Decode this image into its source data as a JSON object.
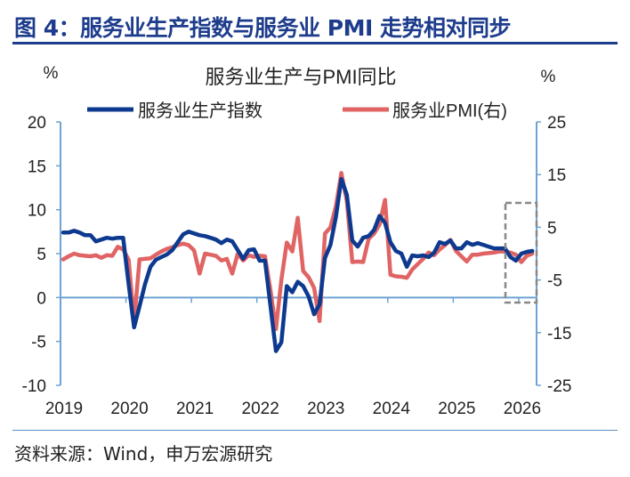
{
  "figure_title": "图 4：服务业生产指数与服务业 PMI 走势相对同步",
  "source": "资料来源：Wind，申万宏源研究",
  "colors": {
    "title": "#1d3c8c",
    "series_production": "#0d3a8f",
    "series_pmi": "#e06464",
    "axis": "#6fa3d3",
    "highlight_box": "#888888"
  },
  "chart_data": {
    "type": "line",
    "title": "服务业生产与PMI同比",
    "left_unit": "%",
    "right_unit": "%",
    "x_tick_labels": [
      "2019",
      "2020",
      "2021",
      "2022",
      "2023",
      "2024",
      "2025",
      "2026"
    ],
    "x_start": "2019-01",
    "frequency": "monthly",
    "left_axis": {
      "ylim": [
        -10,
        20
      ],
      "ticks": [
        "20",
        "15",
        "10",
        "5",
        "0",
        "-5",
        "-10"
      ]
    },
    "right_axis": {
      "ylim": [
        -25,
        25
      ],
      "ticks": [
        "25",
        "15",
        "5",
        "-5",
        "-15",
        "-25"
      ]
    },
    "grid": false,
    "legend_placement": "top",
    "highlight": "dashed box around latest months (late 2025 – 2026)",
    "series": [
      {
        "name": "服务业生产指数",
        "axis": "left",
        "color": "#0d3a8f",
        "values": [
          7.4,
          7.4,
          7.6,
          7.4,
          7.1,
          7.1,
          6.4,
          6.6,
          6.8,
          6.7,
          6.8,
          6.8,
          1.5,
          -3.4,
          -1.0,
          1.5,
          3.5,
          4.3,
          4.6,
          4.9,
          5.4,
          6.3,
          7.2,
          7.5,
          7.3,
          7.1,
          7.0,
          6.8,
          6.6,
          6.2,
          6.6,
          6.4,
          5.4,
          4.4,
          5.4,
          5.5,
          4.2,
          4.2,
          -0.9,
          -6.1,
          -5.1,
          1.3,
          0.6,
          1.8,
          1.3,
          0.1,
          -1.9,
          -0.8,
          4.5,
          6.0,
          9.2,
          13.5,
          11.7,
          6.5,
          5.8,
          6.8,
          7.0,
          7.7,
          9.3,
          8.5,
          6.3,
          5.3,
          5.0,
          3.5,
          4.8,
          4.7,
          4.8,
          4.6,
          5.1,
          6.3,
          6.1,
          6.5,
          5.6,
          5.6,
          6.3,
          6.0,
          6.2,
          6.0,
          5.8,
          5.6,
          5.6,
          5.6,
          4.6,
          4.2,
          5.0,
          5.2,
          5.3
        ]
      },
      {
        "name": "服务业PMI(右)",
        "axis": "right",
        "color": "#e06464",
        "values": [
          -1.1,
          -0.5,
          0.0,
          -0.3,
          -0.4,
          -0.5,
          -0.3,
          -0.8,
          -0.3,
          -0.4,
          1.3,
          0.8,
          -1.2,
          -13.0,
          -1.1,
          -1.0,
          -0.9,
          -0.2,
          0.4,
          0.9,
          1.2,
          1.6,
          1.9,
          1.6,
          0.6,
          -3.8,
          0.0,
          -0.2,
          -0.4,
          -1.3,
          -1.0,
          -3.8,
          0.0,
          -1.3,
          -0.3,
          -0.6,
          -0.4,
          -0.5,
          -6.9,
          -14.3,
          -5.0,
          2.1,
          0.4,
          6.8,
          -3.3,
          -4.5,
          -6.5,
          -12.8,
          3.8,
          5.0,
          9.0,
          15.3,
          10.0,
          -1.6,
          -1.5,
          -1.6,
          2.8,
          3.8,
          5.5,
          10.2,
          -4.0,
          -4.3,
          -4.4,
          -4.6,
          -3.0,
          -2.0,
          -1.0,
          0.2,
          -0.3,
          0.8,
          1.6,
          2.6,
          0.5,
          -0.5,
          -1.5,
          -0.2,
          -0.2,
          0.0,
          0.1,
          0.2,
          0.4,
          0.4,
          0.2,
          -0.2,
          -1.6,
          -0.4,
          0.0
        ]
      }
    ]
  }
}
